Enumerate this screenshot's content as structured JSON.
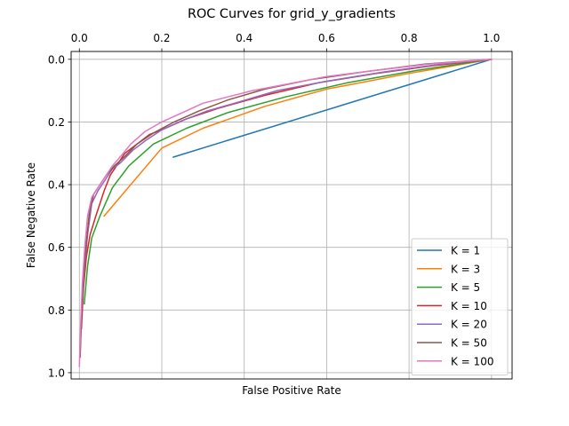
{
  "chart_data": {
    "type": "line",
    "title": "ROC Curves for grid_y_gradients",
    "xlabel": "False Positive Rate",
    "ylabel": "False Negative Rate",
    "xlim": [
      -0.02,
      1.05
    ],
    "ylim": [
      1.02,
      -0.025
    ],
    "x_axis_position": "top",
    "y_inverted": true,
    "x_ticks": [
      0.0,
      0.2,
      0.4,
      0.6,
      0.8,
      1.0
    ],
    "x_tick_labels": [
      "0.0",
      "0.2",
      "0.4",
      "0.6",
      "0.8",
      "1.0"
    ],
    "y_ticks": [
      0.0,
      0.2,
      0.4,
      0.6,
      0.8,
      1.0
    ],
    "y_tick_labels": [
      "0.0",
      "0.2",
      "0.4",
      "0.6",
      "0.8",
      "1.0"
    ],
    "grid": true,
    "legend_position": "lower-right",
    "series": [
      {
        "name": "K = 1",
        "color": "#1f77b4",
        "x": [
          0.228,
          1.0
        ],
        "y": [
          0.312,
          0.0
        ]
      },
      {
        "name": "K = 3",
        "color": "#ff7f0e",
        "x": [
          0.06,
          0.2,
          0.3,
          0.45,
          0.6,
          0.8,
          1.0
        ],
        "y": [
          0.5,
          0.283,
          0.22,
          0.15,
          0.095,
          0.045,
          0.0
        ]
      },
      {
        "name": "K = 5",
        "color": "#2ca02c",
        "x": [
          0.012,
          0.02,
          0.03,
          0.05,
          0.08,
          0.12,
          0.18,
          0.26,
          0.36,
          0.5,
          0.65,
          0.82,
          1.0
        ],
        "y": [
          0.78,
          0.66,
          0.57,
          0.5,
          0.41,
          0.34,
          0.27,
          0.22,
          0.17,
          0.12,
          0.075,
          0.035,
          0.0
        ]
      },
      {
        "name": "K = 10",
        "color": "#d62728",
        "x": [
          0.005,
          0.01,
          0.017,
          0.026,
          0.04,
          0.06,
          0.075,
          0.09,
          0.11,
          0.14,
          0.17,
          0.2,
          0.26,
          0.34,
          0.45,
          0.58,
          0.72,
          0.86,
          1.0
        ],
        "y": [
          0.86,
          0.73,
          0.63,
          0.56,
          0.5,
          0.42,
          0.37,
          0.34,
          0.3,
          0.27,
          0.24,
          0.225,
          0.19,
          0.155,
          0.115,
          0.075,
          0.045,
          0.02,
          0.0
        ]
      },
      {
        "name": "K = 20",
        "color": "#9467bd",
        "x": [
          0.002,
          0.006,
          0.012,
          0.02,
          0.03,
          0.045,
          0.06,
          0.08,
          0.1,
          0.13,
          0.16,
          0.2,
          0.25,
          0.31,
          0.39,
          0.48,
          0.6,
          0.74,
          0.88,
          1.0
        ],
        "y": [
          0.93,
          0.8,
          0.68,
          0.56,
          0.46,
          0.42,
          0.39,
          0.35,
          0.33,
          0.29,
          0.26,
          0.225,
          0.195,
          0.165,
          0.135,
          0.1,
          0.07,
          0.04,
          0.015,
          0.0
        ]
      },
      {
        "name": "K = 50",
        "color": "#8c564b",
        "x": [
          0.002,
          0.005,
          0.01,
          0.017,
          0.025,
          0.035,
          0.05,
          0.065,
          0.085,
          0.11,
          0.14,
          0.18,
          0.23,
          0.29,
          0.36,
          0.45,
          0.56,
          0.69,
          0.84,
          1.0
        ],
        "y": [
          0.95,
          0.82,
          0.7,
          0.58,
          0.48,
          0.43,
          0.4,
          0.37,
          0.34,
          0.31,
          0.27,
          0.235,
          0.2,
          0.165,
          0.13,
          0.095,
          0.065,
          0.04,
          0.015,
          0.0
        ]
      },
      {
        "name": "K = 100",
        "color": "#e377c2",
        "x": [
          0.0,
          0.003,
          0.007,
          0.013,
          0.02,
          0.03,
          0.045,
          0.06,
          0.08,
          0.1,
          0.125,
          0.16,
          0.2,
          0.25,
          0.3,
          0.36,
          0.42,
          0.5,
          0.6,
          0.72,
          0.85,
          0.95,
          1.0
        ],
        "y": [
          0.98,
          0.85,
          0.72,
          0.6,
          0.5,
          0.44,
          0.41,
          0.38,
          0.34,
          0.31,
          0.27,
          0.23,
          0.2,
          0.17,
          0.14,
          0.12,
          0.1,
          0.08,
          0.055,
          0.035,
          0.015,
          0.005,
          0.0
        ]
      }
    ]
  }
}
